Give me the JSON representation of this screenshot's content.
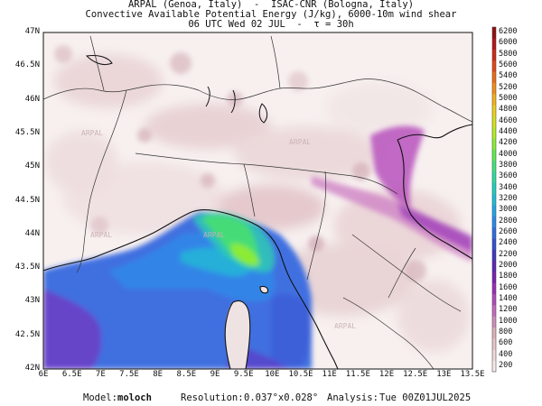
{
  "header": {
    "line1": "ARPAL (Genoa, Italy)  -  ISAC-CNR (Bologna, Italy)",
    "line2": "Convective Available Potential Energy (J/kg), 6000-10m wind shear",
    "line3": "06 UTC Wed 02 JUL  -  τ = 30h"
  },
  "watermark": "ARPAL",
  "map": {
    "lat_labels": [
      "47N",
      "46.5N",
      "46N",
      "45.5N",
      "45N",
      "44.5N",
      "44N",
      "43.5N",
      "43N",
      "42.5N",
      "42N"
    ],
    "lon_labels": [
      "6E",
      "6.5E",
      "7E",
      "7.5E",
      "8E",
      "8.5E",
      "9E",
      "9.5E",
      "10E",
      "10.5E",
      "11E",
      "11.5E",
      "12E",
      "12.5E",
      "13E",
      "13.5E"
    ]
  },
  "colorbar": {
    "labels": [
      "6200",
      "6000",
      "5800",
      "5600",
      "5400",
      "5200",
      "5000",
      "4800",
      "4600",
      "4400",
      "4200",
      "4000",
      "3800",
      "3600",
      "3400",
      "3200",
      "3000",
      "2800",
      "2600",
      "2400",
      "2200",
      "2000",
      "1800",
      "1600",
      "1400",
      "1200",
      "1000",
      "800",
      "600",
      "400",
      "200"
    ]
  },
  "footer": {
    "model_label": "Model:",
    "model_value": "moloch",
    "resolution_label": "Resolution:",
    "resolution_value": "0.037°x0.028°",
    "analysis_label": "Analysis:",
    "analysis_value": "Tue 00Z01JUL2025"
  }
}
